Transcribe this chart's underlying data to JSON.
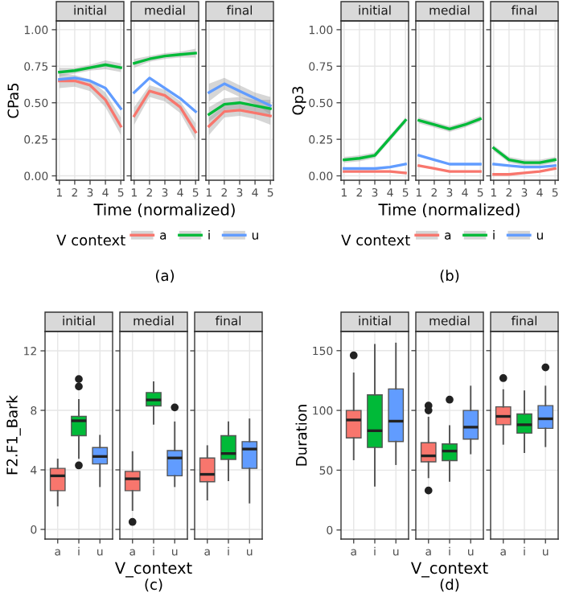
{
  "chart_data": [
    {
      "type": "line",
      "title": "initial",
      "ylabel": "CPa5",
      "x": [
        1,
        2,
        3,
        4,
        5
      ],
      "xlim": [
        0.8,
        5.2
      ],
      "xticks": [
        1,
        2,
        3,
        4,
        5
      ],
      "ylim": [
        -0.03,
        1.06
      ],
      "yticks": [
        {
          "value": 0,
          "label": "0.00"
        },
        {
          "value": 0.25,
          "label": "0.25"
        },
        {
          "value": 0.5,
          "label": "0.50"
        },
        {
          "value": 0.75,
          "label": "0.75"
        },
        {
          "value": 1,
          "label": "1.00"
        }
      ],
      "grid": true,
      "series": [
        {
          "color": "#f8766d",
          "values": [
            0.65,
            0.65,
            0.62,
            0.52,
            0.34
          ],
          "lower": [
            0.6,
            0.61,
            0.58,
            0.47,
            0.28
          ],
          "upper": [
            0.7,
            0.69,
            0.66,
            0.57,
            0.4
          ]
        },
        {
          "color": "#00ba38",
          "values": [
            0.71,
            0.72,
            0.74,
            0.76,
            0.74
          ],
          "lower": [
            0.68,
            0.7,
            0.72,
            0.73,
            0.71
          ],
          "upper": [
            0.74,
            0.74,
            0.76,
            0.79,
            0.77
          ]
        },
        {
          "color": "#619cff",
          "values": [
            0.66,
            0.67,
            0.65,
            0.6,
            0.46
          ]
        }
      ]
    },
    {
      "type": "line",
      "title": "medial",
      "xlabel": "Time (normalized)",
      "x": [
        1,
        2,
        3,
        4,
        5
      ],
      "xlim": [
        0.8,
        5.2
      ],
      "xticks": [
        1,
        2,
        3,
        4,
        5
      ],
      "ylim": [
        -0.03,
        1.06
      ],
      "yticks": [
        0,
        0.25,
        0.5,
        0.75,
        1
      ],
      "grid": true,
      "tick_labels": "x",
      "legend": "bottom",
      "legend_title": "V context",
      "annotations": [
        "(a)"
      ],
      "series": [
        {
          "name": "a",
          "color": "#f8766d",
          "values": [
            0.41,
            0.58,
            0.55,
            0.47,
            0.3
          ],
          "lower": [
            0.35,
            0.54,
            0.51,
            0.43,
            0.24
          ],
          "upper": [
            0.47,
            0.62,
            0.59,
            0.51,
            0.36
          ]
        },
        {
          "name": "i",
          "color": "#00ba38",
          "values": [
            0.77,
            0.8,
            0.82,
            0.83,
            0.84
          ],
          "lower": [
            0.74,
            0.78,
            0.8,
            0.81,
            0.81
          ],
          "upper": [
            0.8,
            0.82,
            0.84,
            0.85,
            0.87
          ]
        },
        {
          "name": "u",
          "color": "#619cff",
          "values": [
            0.57,
            0.67,
            0.6,
            0.53,
            0.44
          ]
        }
      ]
    },
    {
      "type": "line",
      "title": "final",
      "x": [
        1,
        2,
        3,
        4,
        5
      ],
      "xlim": [
        0.8,
        5.2
      ],
      "xticks": [
        1,
        2,
        3,
        4,
        5
      ],
      "ylim": [
        -0.03,
        1.06
      ],
      "yticks": [
        0,
        0.25,
        0.5,
        0.75,
        1
      ],
      "grid": true,
      "tick_labels": "x",
      "series": [
        {
          "color": "#f8766d",
          "values": [
            0.34,
            0.44,
            0.45,
            0.43,
            0.41
          ],
          "lower": [
            0.28,
            0.4,
            0.41,
            0.39,
            0.35
          ],
          "upper": [
            0.4,
            0.48,
            0.49,
            0.47,
            0.47
          ]
        },
        {
          "color": "#00ba38",
          "values": [
            0.42,
            0.49,
            0.5,
            0.48,
            0.46
          ],
          "lower": [
            0.37,
            0.45,
            0.46,
            0.44,
            0.4
          ],
          "upper": [
            0.47,
            0.53,
            0.54,
            0.52,
            0.52
          ]
        },
        {
          "color": "#619cff",
          "values": [
            0.57,
            0.63,
            0.58,
            0.53,
            0.48
          ],
          "lower": [
            0.51,
            0.59,
            0.54,
            0.49,
            0.42
          ],
          "upper": [
            0.63,
            0.67,
            0.62,
            0.57,
            0.54
          ]
        }
      ]
    },
    {
      "type": "line",
      "title": "initial",
      "ylabel": "Qp3",
      "x": [
        1,
        2,
        3,
        4,
        5
      ],
      "xlim": [
        0.8,
        5.2
      ],
      "xticks": [
        1,
        2,
        3,
        4,
        5
      ],
      "ylim": [
        -0.03,
        1.06
      ],
      "yticks": [
        {
          "value": 0,
          "label": "0.00"
        },
        {
          "value": 0.25,
          "label": "0.25"
        },
        {
          "value": 0.5,
          "label": "0.50"
        },
        {
          "value": 0.75,
          "label": "0.75"
        },
        {
          "value": 1,
          "label": "1.00"
        }
      ],
      "grid": true,
      "series": [
        {
          "color": "#f8766d",
          "values": [
            0.03,
            0.03,
            0.03,
            0.03,
            0.02
          ]
        },
        {
          "color": "#00ba38",
          "values": [
            0.11,
            0.12,
            0.14,
            0.26,
            0.38
          ],
          "lower": [
            0.09,
            0.1,
            0.12,
            0.24,
            0.36
          ],
          "upper": [
            0.13,
            0.14,
            0.16,
            0.28,
            0.4
          ]
        },
        {
          "color": "#619cff",
          "values": [
            0.05,
            0.05,
            0.05,
            0.06,
            0.08
          ]
        }
      ]
    },
    {
      "type": "line",
      "title": "medial",
      "xlabel": "Time (normalized)",
      "x": [
        1,
        2,
        3,
        4,
        5
      ],
      "xlim": [
        0.8,
        5.2
      ],
      "xticks": [
        1,
        2,
        3,
        4,
        5
      ],
      "ylim": [
        -0.03,
        1.06
      ],
      "yticks": [
        0,
        0.25,
        0.5,
        0.75,
        1
      ],
      "grid": true,
      "tick_labels": "x",
      "legend": "bottom",
      "legend_title": "V context",
      "annotations": [
        "(b)"
      ],
      "series": [
        {
          "name": "a",
          "color": "#f8766d",
          "values": [
            0.07,
            0.05,
            0.03,
            0.03,
            0.03
          ]
        },
        {
          "name": "i",
          "color": "#00ba38",
          "values": [
            0.38,
            0.35,
            0.32,
            0.35,
            0.39
          ],
          "lower": [
            0.36,
            0.33,
            0.3,
            0.33,
            0.37
          ],
          "upper": [
            0.4,
            0.37,
            0.34,
            0.37,
            0.41
          ]
        },
        {
          "name": "u",
          "color": "#619cff",
          "values": [
            0.14,
            0.11,
            0.08,
            0.08,
            0.08
          ]
        }
      ]
    },
    {
      "type": "line",
      "title": "final",
      "x": [
        1,
        2,
        3,
        4,
        5
      ],
      "xlim": [
        0.8,
        5.2
      ],
      "xticks": [
        1,
        2,
        3,
        4,
        5
      ],
      "ylim": [
        -0.03,
        1.06
      ],
      "yticks": [
        0,
        0.25,
        0.5,
        0.75,
        1
      ],
      "grid": true,
      "tick_labels": "x",
      "series": [
        {
          "color": "#f8766d",
          "values": [
            0.01,
            0.01,
            0.02,
            0.03,
            0.05
          ]
        },
        {
          "color": "#00ba38",
          "values": [
            0.19,
            0.11,
            0.09,
            0.09,
            0.11
          ],
          "lower": [
            0.17,
            0.09,
            0.07,
            0.07,
            0.09
          ],
          "upper": [
            0.21,
            0.13,
            0.11,
            0.11,
            0.13
          ]
        },
        {
          "color": "#619cff",
          "values": [
            0.08,
            0.07,
            0.06,
            0.06,
            0.07
          ]
        }
      ]
    },
    {
      "type": "box",
      "title": "initial",
      "ylabel": "F2.F1_Bark",
      "categories": [
        "a",
        "i",
        "u"
      ],
      "colors": [
        "#f8766d",
        "#00ba38",
        "#619cff"
      ],
      "ylim": [
        -0.65,
        13.3
      ],
      "yticks": [
        0,
        4,
        8,
        12
      ],
      "grid": true,
      "boxes": [
        {
          "low": 1.6,
          "q1": 2.6,
          "median": 3.6,
          "q3": 4.1,
          "high": 4.7
        },
        {
          "low": 4.8,
          "q1": 6.3,
          "median": 7.3,
          "q3": 7.6,
          "high": 8.7,
          "outliers": [
            4.3,
            9.6,
            10.1
          ]
        },
        {
          "low": 2.9,
          "q1": 4.4,
          "median": 4.9,
          "q3": 5.5,
          "high": 6.3
        }
      ]
    },
    {
      "type": "box",
      "title": "medial",
      "xlabel": "V_context",
      "categories": [
        "a",
        "i",
        "u"
      ],
      "colors": [
        "#f8766d",
        "#00ba38",
        "#619cff"
      ],
      "ylim": [
        -0.65,
        13.3
      ],
      "yticks": [
        0,
        4,
        8,
        12
      ],
      "grid": true,
      "tick_labels": "x",
      "annotations": [
        "(c)"
      ],
      "boxes": [
        {
          "low": 1.3,
          "q1": 2.6,
          "median": 3.4,
          "q3": 3.9,
          "high": 5.2,
          "outliers": [
            0.5
          ]
        },
        {
          "low": 7.1,
          "q1": 8.3,
          "median": 8.7,
          "q3": 9.2,
          "high": 9.9
        },
        {
          "low": 2.9,
          "q1": 3.6,
          "median": 4.8,
          "q3": 5.3,
          "high": 7.2,
          "outliers": [
            8.2
          ]
        }
      ]
    },
    {
      "type": "box",
      "title": "final",
      "categories": [
        "a",
        "i",
        "u"
      ],
      "colors": [
        "#f8766d",
        "#00ba38",
        "#619cff"
      ],
      "ylim": [
        -0.65,
        13.3
      ],
      "yticks": [
        0,
        4,
        8,
        12
      ],
      "grid": true,
      "tick_labels": "x",
      "boxes": [
        {
          "low": 2.0,
          "q1": 3.2,
          "median": 3.7,
          "q3": 4.8,
          "high": 5.6
        },
        {
          "low": 3.3,
          "q1": 4.7,
          "median": 5.1,
          "q3": 6.3,
          "high": 7.2
        },
        {
          "low": 1.8,
          "q1": 4.1,
          "median": 5.4,
          "q3": 5.9,
          "high": 7.4
        }
      ]
    },
    {
      "type": "box",
      "title": "initial",
      "ylabel": "Duration",
      "categories": [
        "a",
        "i",
        "u"
      ],
      "colors": [
        "#f8766d",
        "#00ba38",
        "#619cff"
      ],
      "ylim": [
        -7.6,
        166
      ],
      "yticks": [
        0,
        50,
        100,
        150
      ],
      "grid": true,
      "boxes": [
        {
          "low": 59,
          "q1": 77,
          "median": 92,
          "q3": 100,
          "high": 131,
          "outliers": [
            146
          ]
        },
        {
          "low": 37,
          "q1": 69,
          "median": 83,
          "q3": 113,
          "high": 155
        },
        {
          "low": 55,
          "q1": 74,
          "median": 91,
          "q3": 118,
          "high": 156
        }
      ]
    },
    {
      "type": "box",
      "title": "medial",
      "xlabel": "V_context",
      "categories": [
        "a",
        "i",
        "u"
      ],
      "colors": [
        "#f8766d",
        "#00ba38",
        "#619cff"
      ],
      "ylim": [
        -7.6,
        166
      ],
      "yticks": [
        0,
        50,
        100,
        150
      ],
      "grid": true,
      "tick_labels": "x",
      "annotations": [
        "(d)"
      ],
      "boxes": [
        {
          "low": 44,
          "q1": 57,
          "median": 62,
          "q3": 73,
          "high": 94,
          "outliers": [
            33,
            100,
            104
          ]
        },
        {
          "low": 41,
          "q1": 58,
          "median": 66,
          "q3": 72,
          "high": 87,
          "outliers": [
            109
          ]
        },
        {
          "low": 64,
          "q1": 76,
          "median": 86,
          "q3": 100,
          "high": 120
        }
      ]
    },
    {
      "type": "box",
      "title": "final",
      "categories": [
        "a",
        "i",
        "u"
      ],
      "colors": [
        "#f8766d",
        "#00ba38",
        "#619cff"
      ],
      "ylim": [
        -7.6,
        166
      ],
      "yticks": [
        0,
        50,
        100,
        150
      ],
      "grid": true,
      "tick_labels": "x",
      "boxes": [
        {
          "low": 72,
          "q1": 88,
          "median": 95,
          "q3": 103,
          "high": 117,
          "outliers": [
            127
          ]
        },
        {
          "low": 65,
          "q1": 81,
          "median": 88,
          "q3": 97,
          "high": 116
        },
        {
          "low": 70,
          "q1": 85,
          "median": 93,
          "q3": 104,
          "high": 120,
          "outliers": [
            136
          ]
        }
      ]
    }
  ]
}
